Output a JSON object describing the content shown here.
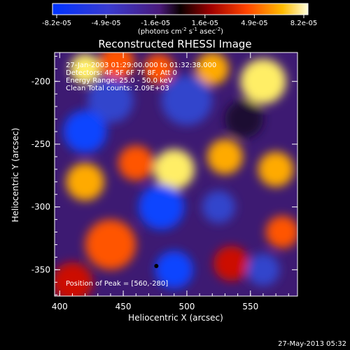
{
  "chart_data": {
    "type": "heatmap",
    "title": "Reconstructed RHESSI Image",
    "xlabel": "Heliocentric X (arcsec)",
    "ylabel": "Heliocentric Y (arcsec)",
    "xlim": [
      396,
      587
    ],
    "ylim": [
      -371,
      -177
    ],
    "xticks": [
      400,
      450,
      500,
      550
    ],
    "yticks": [
      -200,
      -250,
      -300,
      -350
    ],
    "colorbar": {
      "range": [
        -8.2e-05,
        8.2e-05
      ],
      "tick_labels": [
        "-8.2e-05",
        "-4.9e-05",
        "-1.6e-05",
        "1.6e-05",
        "4.9e-05",
        "8.2e-05"
      ],
      "label_text": "(photons cm",
      "label_exp1": "-2",
      "label_mid": " s",
      "label_exp2": "-1",
      "label_tail": " asec",
      "label_exp3": "-2",
      "label_close": ")"
    },
    "annotations": [
      "27-Jan-2003 01:29:00.000 to 01:32:38.000",
      "Detectors: 4F 5F 6F 7F 8F, Att 0",
      "Energy Range: 25.0 - 50.0 keV",
      "Clean     Total counts: 2.09E+03"
    ],
    "peak_label": "Position of Peak = [560,-280]",
    "peak": [
      560,
      -280
    ],
    "marker": [
      476,
      -347
    ],
    "blobs": [
      {
        "x": 420,
        "y": -190,
        "v": 0.9,
        "s": 12
      },
      {
        "x": 445,
        "y": -185,
        "v": 0.6,
        "s": 14
      },
      {
        "x": 478,
        "y": -190,
        "v": 0.5,
        "s": 12
      },
      {
        "x": 520,
        "y": -190,
        "v": 0.7,
        "s": 13
      },
      {
        "x": 560,
        "y": -200,
        "v": 1.0,
        "s": 18
      },
      {
        "x": 440,
        "y": -215,
        "v": -0.8,
        "s": 18
      },
      {
        "x": 500,
        "y": -215,
        "v": -0.6,
        "s": 20
      },
      {
        "x": 545,
        "y": -230,
        "v": -0.5,
        "s": 15
      },
      {
        "x": 420,
        "y": -240,
        "v": -0.9,
        "s": 17
      },
      {
        "x": 420,
        "y": -280,
        "v": 0.8,
        "s": 15
      },
      {
        "x": 460,
        "y": -265,
        "v": 0.5,
        "s": 14
      },
      {
        "x": 490,
        "y": -270,
        "v": 1.0,
        "s": 16
      },
      {
        "x": 530,
        "y": -260,
        "v": 0.8,
        "s": 14
      },
      {
        "x": 570,
        "y": -270,
        "v": 0.7,
        "s": 14
      },
      {
        "x": 480,
        "y": -300,
        "v": -0.9,
        "s": 18
      },
      {
        "x": 525,
        "y": -300,
        "v": -0.6,
        "s": 13
      },
      {
        "x": 440,
        "y": -330,
        "v": 0.5,
        "s": 20
      },
      {
        "x": 490,
        "y": -350,
        "v": -1.0,
        "s": 15
      },
      {
        "x": 535,
        "y": -345,
        "v": 0.4,
        "s": 14
      },
      {
        "x": 560,
        "y": -350,
        "v": -0.7,
        "s": 13
      },
      {
        "x": 575,
        "y": -320,
        "v": 0.6,
        "s": 13
      },
      {
        "x": 410,
        "y": -360,
        "v": 0.3,
        "s": 16
      }
    ]
  },
  "footer": {
    "timestamp": "27-May-2013 05:32"
  }
}
